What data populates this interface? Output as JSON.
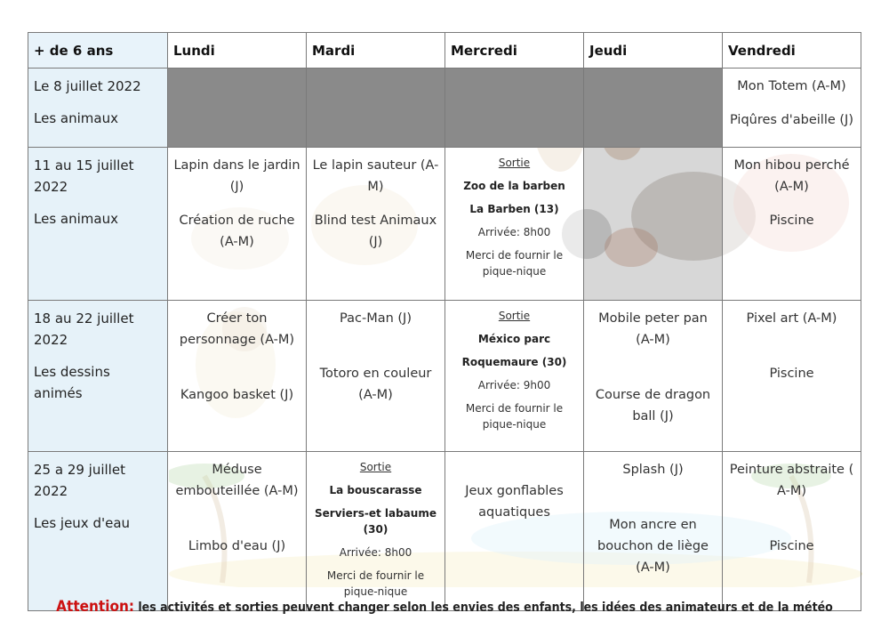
{
  "header": {
    "age": "+ de 6 ans",
    "days": [
      "Lundi",
      "Mardi",
      "Mercredi",
      "Jeudi",
      "Vendredi"
    ]
  },
  "weeks": [
    {
      "date": "Le 8 juillet 2022",
      "theme": "Les animaux",
      "friday": [
        "Mon Totem (A-M)",
        "Piqûres d'abeille (J)"
      ]
    },
    {
      "date": "11 au 15 juillet 2022",
      "theme": "Les animaux",
      "monday": [
        "Lapin dans le jardin (J)",
        "Création de ruche (A-M)"
      ],
      "tuesday": [
        "Le lapin sauteur (A-M)",
        "Blind test Animaux (J)"
      ],
      "wednesday": {
        "sortie": "Sortie",
        "place": "Zoo de la barben",
        "city": "La Barben (13)",
        "arrival": "Arrivée: 8h00",
        "note": "Merci de fournir le pique-nique"
      },
      "friday": [
        "Mon hibou perché (A-M)",
        "Piscine"
      ]
    },
    {
      "date": "18 au 22 juillet 2022",
      "theme": "Les dessins animés",
      "monday": [
        "Créer ton personnage (A-M)",
        "Kangoo basket (J)"
      ],
      "tuesday": [
        "Pac-Man (J)",
        "Totoro en couleur (A-M)"
      ],
      "wednesday": {
        "sortie": "Sortie",
        "place": "México parc",
        "city": "Roquemaure (30)",
        "arrival": "Arrivée: 9h00",
        "note": "Merci de fournir le pique-nique"
      },
      "thursday": [
        "Mobile peter pan (A-M)",
        "Course de dragon ball (J)"
      ],
      "friday": [
        "Pixel art (A-M)",
        "Piscine"
      ]
    },
    {
      "date": "25 a 29 juillet 2022",
      "theme": "Les jeux d'eau",
      "monday": [
        "Méduse embouteillée (A-M)",
        "Limbo d'eau (J)"
      ],
      "tuesday": {
        "sortie": "Sortie",
        "place": "La bouscarasse",
        "city": "Serviers-et labaume (30)",
        "arrival": "Arrivée: 8h00",
        "note": "Merci de fournir le pique-nique"
      },
      "wednesday": [
        "Jeux gonflables aquatiques"
      ],
      "thursday": [
        "Splash (J)",
        "Mon ancre en bouchon de liège (A-M)"
      ],
      "friday": [
        "Peinture abstraite ( A-M)",
        "Piscine"
      ]
    }
  ],
  "footer": {
    "attention": "Attention:",
    "text": " les activités et sorties  peuvent changer selon les envies des enfants, les idées des animateurs et de la météo"
  }
}
